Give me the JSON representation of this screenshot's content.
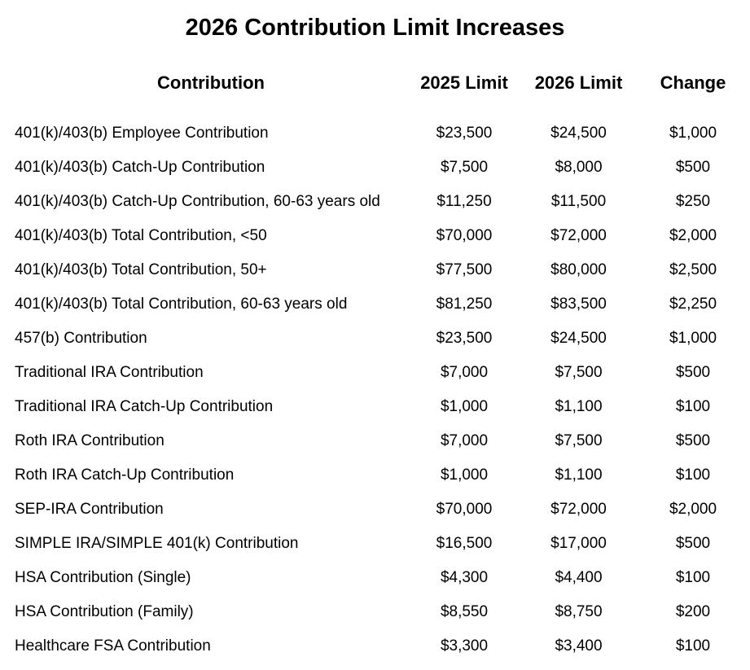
{
  "title": "2026 Contribution Limit Increases",
  "colors": {
    "background": "#ffffff",
    "text": "#000000"
  },
  "chart_data": {
    "type": "table",
    "title": "2026 Contribution Limit Increases",
    "columns": [
      "Contribution",
      "2025 Limit",
      "2026 Limit",
      "Change"
    ],
    "rows": [
      [
        "401(k)/403(b) Employee Contribution",
        "$23,500",
        "$24,500",
        "$1,000"
      ],
      [
        "401(k)/403(b) Catch-Up Contribution",
        "$7,500",
        "$8,000",
        "$500"
      ],
      [
        "401(k)/403(b) Catch-Up Contribution, 60-63 years old",
        "$11,250",
        "$11,500",
        "$250"
      ],
      [
        "401(k)/403(b) Total Contribution, <50",
        "$70,000",
        "$72,000",
        "$2,000"
      ],
      [
        "401(k)/403(b) Total Contribution, 50+",
        "$77,500",
        "$80,000",
        "$2,500"
      ],
      [
        "401(k)/403(b) Total Contribution, 60-63 years old",
        "$81,250",
        "$83,500",
        "$2,250"
      ],
      [
        "457(b) Contribution",
        "$23,500",
        "$24,500",
        "$1,000"
      ],
      [
        "Traditional IRA Contribution",
        "$7,000",
        "$7,500",
        "$500"
      ],
      [
        "Traditional IRA Catch-Up Contribution",
        "$1,000",
        "$1,100",
        "$100"
      ],
      [
        "Roth IRA Contribution",
        "$7,000",
        "$7,500",
        "$500"
      ],
      [
        "Roth IRA Catch-Up Contribution",
        "$1,000",
        "$1,100",
        "$100"
      ],
      [
        "SEP-IRA Contribution",
        "$70,000",
        "$72,000",
        "$2,000"
      ],
      [
        "SIMPLE IRA/SIMPLE 401(k) Contribution",
        "$16,500",
        "$17,000",
        "$500"
      ],
      [
        "HSA Contribution (Single)",
        "$4,300",
        "$4,400",
        "$100"
      ],
      [
        "HSA Contribution (Family)",
        "$8,550",
        "$8,750",
        "$200"
      ],
      [
        "Healthcare FSA Contribution",
        "$3,300",
        "$3,400",
        "$100"
      ]
    ]
  }
}
